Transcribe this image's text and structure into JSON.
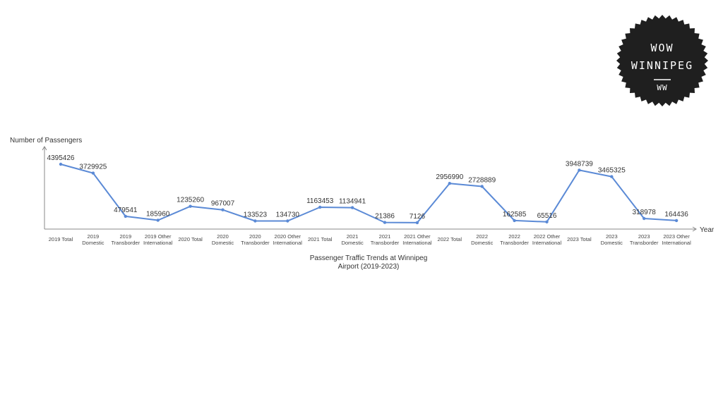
{
  "logo": {
    "line1": "WOW",
    "line2": "WINNIPEG",
    "line3": "WW",
    "color": "#1f1f1f"
  },
  "chart_data": {
    "type": "line",
    "title": [
      "Passenger Traffic Trends at Winnipeg",
      "Airport (2019-2023)"
    ],
    "xlabel": "Year",
    "ylabel": "Number of Passengers",
    "line_color": "#5b8ad6",
    "ylim": [
      0,
      4600000
    ],
    "grid": false,
    "categories": [
      [
        "2019 Total"
      ],
      [
        "2019",
        "Domestic"
      ],
      [
        "2019",
        "Transborder"
      ],
      [
        "2019 Other",
        "International"
      ],
      [
        "2020 Total"
      ],
      [
        "2020",
        "Domestic"
      ],
      [
        "2020",
        "Transborder"
      ],
      [
        "2020 Other",
        "International"
      ],
      [
        "2021 Total"
      ],
      [
        "2021",
        "Domestic"
      ],
      [
        "2021",
        "Transborder"
      ],
      [
        "2021 Other",
        "International"
      ],
      [
        "2022 Total"
      ],
      [
        "2022",
        "Domestic"
      ],
      [
        "2022",
        "Transborder"
      ],
      [
        "2022 Other",
        "International"
      ],
      [
        "2023 Total"
      ],
      [
        "2023",
        "Domestic"
      ],
      [
        "2023",
        "Transborder"
      ],
      [
        "2023 Other",
        "International"
      ]
    ],
    "values": [
      4395426,
      3729925,
      479541,
      185960,
      1235260,
      967007,
      133523,
      134730,
      1163453,
      1134941,
      21386,
      7126,
      2956990,
      2728889,
      162585,
      65516,
      3948739,
      3465325,
      318978,
      164436
    ]
  }
}
